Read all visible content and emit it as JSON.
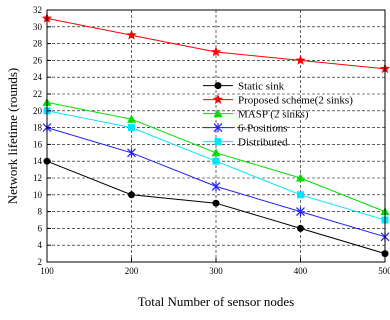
{
  "chart_data": {
    "type": "line",
    "xlabel": "Total Number of sensor nodes",
    "ylabel": "Network lifetime (rounds)",
    "x": [
      100,
      200,
      300,
      400,
      500
    ],
    "xlim": [
      100,
      500
    ],
    "ylim": [
      2,
      32
    ],
    "xticks": [
      100,
      200,
      300,
      400,
      500
    ],
    "yticks": [
      2,
      4,
      6,
      8,
      10,
      12,
      14,
      16,
      18,
      20,
      22,
      24,
      26,
      28,
      30,
      32
    ],
    "grid": true,
    "legend_position": "right",
    "series": [
      {
        "name": "Static sink",
        "values": [
          14,
          10,
          9,
          6,
          3
        ],
        "color": "#000000",
        "marker": "circle"
      },
      {
        "name": "Proposed scheme(2 sinks)",
        "values": [
          31,
          29,
          27,
          26,
          25
        ],
        "color": "#ff0000",
        "marker": "star"
      },
      {
        "name": "MASP (2 sinks)",
        "values": [
          21,
          19,
          15,
          12,
          8
        ],
        "color": "#00dd00",
        "marker": "triangle"
      },
      {
        "name": "6-Positions",
        "values": [
          18,
          15,
          11,
          8,
          5
        ],
        "color": "#2020ff",
        "marker": "x-star"
      },
      {
        "name": "Distributed",
        "values": [
          20,
          18,
          14,
          10,
          7
        ],
        "color": "#00e5ff",
        "marker": "square"
      }
    ]
  }
}
